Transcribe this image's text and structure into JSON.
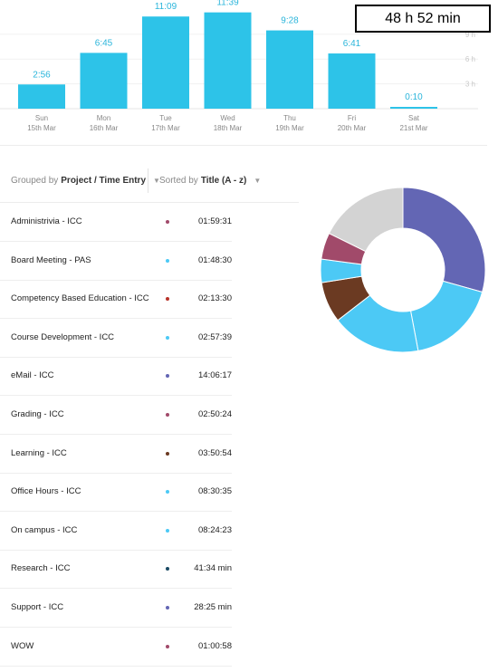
{
  "chart_data": {
    "type": "bar",
    "categories": [
      "Sun",
      "Mon",
      "Tue",
      "Wed",
      "Thu",
      "Fri",
      "Sat"
    ],
    "dates": [
      "15th Mar",
      "16th Mar",
      "17th Mar",
      "18th Mar",
      "19th Mar",
      "20th Mar",
      "21st Mar"
    ],
    "values": [
      2.93,
      6.75,
      11.15,
      11.65,
      9.47,
      6.68,
      0.17
    ],
    "value_labels": [
      "2:56",
      "6:45",
      "11:09",
      "11:39",
      "9:28",
      "6:41",
      "0:10"
    ],
    "yticks": [
      3,
      6,
      9
    ],
    "ytick_labels": [
      "3 h",
      "6 h",
      "9 h"
    ],
    "ylim": [
      0,
      12.6
    ],
    "color": "#2dc3e8"
  },
  "total": "48 h 52 min",
  "toolbar": {
    "grouped_prefix": "Grouped by",
    "grouped_value": "Project / Time Entry",
    "sorted_prefix": "Sorted by",
    "sorted_value": "Title (A - z)"
  },
  "entries": [
    {
      "title": "Administrivia - ICC",
      "time": "01:59:31",
      "color": "#a14a6a"
    },
    {
      "title": "Board Meeting - PAS",
      "time": "01:48:30",
      "color": "#4cc9f5"
    },
    {
      "title": "Competency Based Education - ICC",
      "time": "02:13:30",
      "color": "#b8332a"
    },
    {
      "title": "Course Development - ICC",
      "time": "02:57:39",
      "color": "#4cc9f5"
    },
    {
      "title": "eMail - ICC",
      "time": "14:06:17",
      "color": "#6366b4"
    },
    {
      "title": "Grading - ICC",
      "time": "02:50:24",
      "color": "#a14a6a"
    },
    {
      "title": "Learning - ICC",
      "time": "03:50:54",
      "color": "#6b3a22"
    },
    {
      "title": "Office Hours - ICC",
      "time": "08:30:35",
      "color": "#4cc9f5"
    },
    {
      "title": "On campus - ICC",
      "time": "08:24:23",
      "color": "#4cc9f5"
    },
    {
      "title": "Research - ICC",
      "time": "41:34 min",
      "color": "#1a4a64"
    },
    {
      "title": "Support - ICC",
      "time": "28:25 min",
      "color": "#6366b4"
    },
    {
      "title": "WOW",
      "time": "01:00:58",
      "color": "#a14a6a"
    }
  ],
  "donut": {
    "segments": [
      {
        "value": 14.1,
        "color": "#6366b4"
      },
      {
        "value": 8.5,
        "color": "#4cc9f5"
      },
      {
        "value": 8.4,
        "color": "#4cc9f5"
      },
      {
        "value": 3.85,
        "color": "#6b3a22"
      },
      {
        "value": 2.2,
        "color": "#4cc9f5"
      },
      {
        "value": 2.5,
        "color": "#a14a6a"
      },
      {
        "value": 8.5,
        "color": "#d3d3d3"
      }
    ]
  }
}
